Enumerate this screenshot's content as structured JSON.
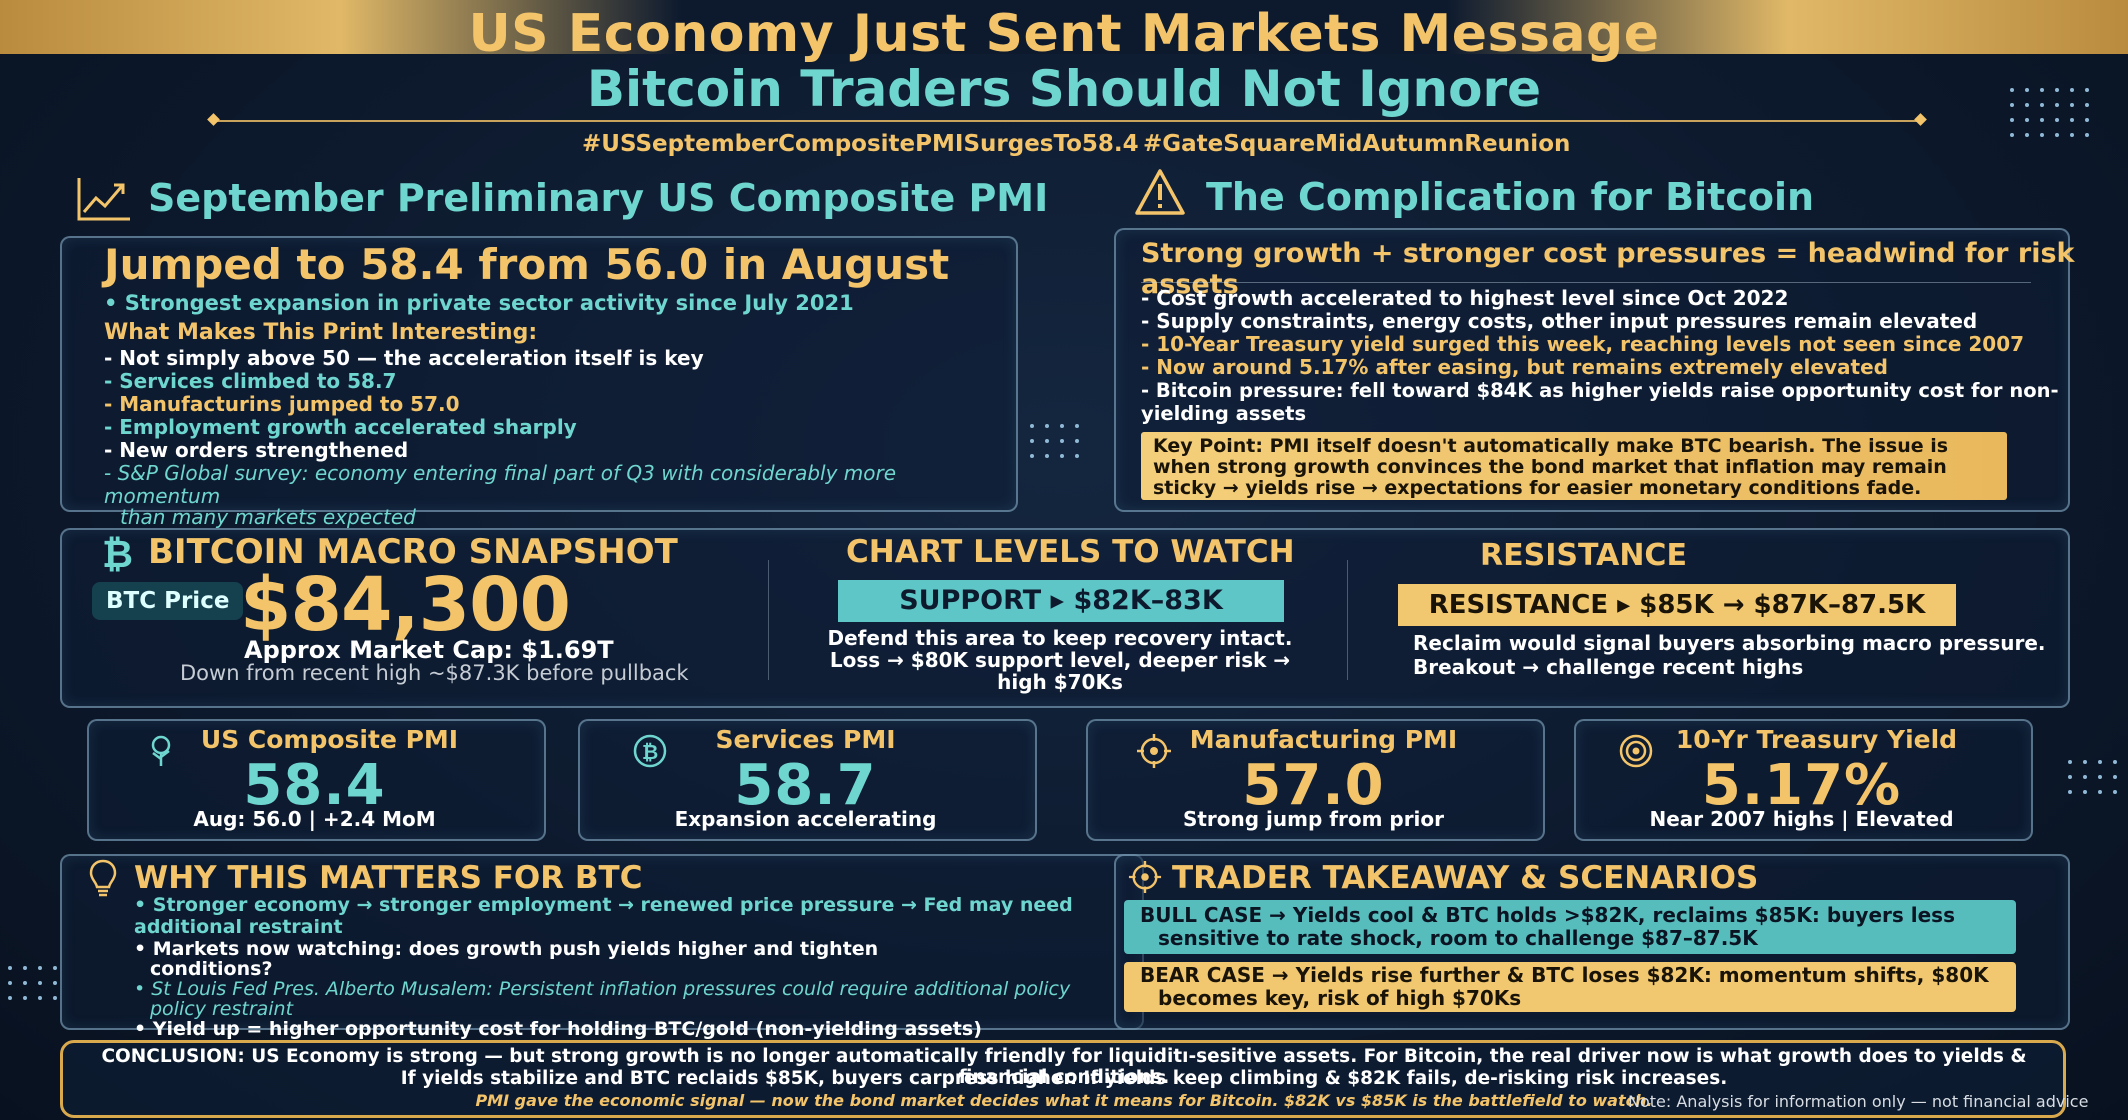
{
  "header": {
    "title_line1": "US Economy Just Sent Markets Message",
    "title_line2": "Bitcoin Traders Should Not Ignore",
    "hashtag1": "#USSeptemberCompositePMISurgesTo58.4",
    "hashtag2": "#GateSquareMidAutumnReunion"
  },
  "pmi_section": {
    "heading": "September Preliminary US Composite PMI",
    "headline": "Jumped to 58.4 from 56.0 in August",
    "subline": "• Strongest expansion in private sector activity since July 2021",
    "interesting_title": "What Makes This Print Interesting:",
    "bullets": [
      "- Not simply above 50 — the acceleration itself is key",
      "- Services climbed to 58.7",
      "- Manufacturins jumped to 57.0",
      "- Employment growth accelerated sharply",
      "- New orders strengthened",
      "- S&P Global survey: economy entering final part of Q3 with considerably more momentum",
      "than many markets expected"
    ]
  },
  "complication": {
    "heading": "The Complication for Bitcoin",
    "headline": "Strong growth + stronger cost pressures = headwind for risk assets",
    "bullets": [
      "- Cost growth accelerated to highest level since Oct 2022",
      "- Supply constraints, energy costs, other input pressures remain elevated",
      "- 10-Year Treasury yield surged this week, reaching levels not seen since 2007",
      "- Now around 5.17% after easing, but remains extremely elevated",
      "- Bitcoin pressure: fell toward $84K as higher yields raise opportunity cost for non-yielding assets"
    ],
    "key_point": "Key Point: PMI itself doesn't automatically make BTC bearish. The issue is when strong growth convinces the bond market that inflation may remain sticky → yields rise → expectations for easier monetary conditions fade."
  },
  "snapshot": {
    "heading": "BITCOIN MACRO SNAPSHOT",
    "price_label": "BTC Price",
    "price": "$84,300",
    "market_cap": "Approx Market Cap: $1.69T",
    "note": "Down from recent high ~$87.3K before pullback",
    "levels_heading": "CHART LEVELS TO WATCH",
    "support_label": "SUPPORT ▸ $82K–83K",
    "support_text1": "Defend this area to keep recovery intact.",
    "support_text2": "Loss → $80K support level, deeper risk →",
    "support_text3": "high $70Ks",
    "resistance_heading": "RESISTANCE",
    "resistance_label": "RESISTANCE ▸ $85K → $87K–87.5K",
    "resistance_text1": "Reclaim would signal buyers absorbing macro pressure.",
    "resistance_text2": "Breakout → challenge recent highs"
  },
  "stats": [
    {
      "name": "US Composite PMI",
      "value": "58.4",
      "sub": "Aug: 56.0 | +2.4 MoM",
      "icon": "growth-tree-icon"
    },
    {
      "name": "Services PMI",
      "value": "58.7",
      "sub": "Expansion accelerating",
      "icon": "bitcoin-coin-icon"
    },
    {
      "name": "Manufacturing PMI",
      "value": "57.0",
      "sub": "Strong jump from prior",
      "icon": "target-crosshair-icon"
    },
    {
      "name": "10-Yr Treasury Yield",
      "value": "5.17%",
      "sub": "Near 2007 highs | Elevated",
      "icon": "target-icon"
    }
  ],
  "why": {
    "heading": "WHY THIS MATTERS FOR BTC",
    "bullets": [
      "• Stronger economy → stronger employment → renewed price pressure → Fed may need additional restraint",
      "• Markets now watching: does growth push yields higher and tighten",
      "conditions?",
      "• St Louis Fed Pres. Alberto Musalem: Persistent inflation pressures could require additional policy",
      "policy restraint",
      "• Yield up = higher opportunity cost for holding BTC/gold (non-yielding assets)"
    ]
  },
  "takeaway": {
    "heading": "TRADER TAKEAWAY & SCENARIOS",
    "bull": "BULL CASE → Yields cool & BTC holds >$82K, reclaims $85K: buyers less sensitive to rate shock, room to challenge $87–87.5K",
    "bear": "BEAR CASE → Yields rise further & BTC loses $82K: momentum shifts, $80K becomes key, risk of high $70Ks"
  },
  "conclusion": {
    "line1": "CONCLUSION: US Economy is strong — but strong growth is no longer automatically friendly for liquiditı-sesitive assets. For Bitcoin, the real driver now is what growth does to yields & financial conditions.",
    "line2": "If yields stabilize and BTC reclaids $85K, buyers carpress higher. If yields keep climbing & $82K fails, de-risking risk increases.",
    "line3": "PMI gave the economic signal — now the bond market decides what it means for Bitcoin. $82K vs $85K is the battlefield to watch.",
    "note": "Note: Analysis for information only — not financial advice"
  },
  "colors": {
    "gold": "#f3c46a",
    "teal": "#6fd6cf",
    "background": "#0d1a2e",
    "support_bg": "#5ec6c6",
    "resistance_bg": "#f1c870"
  }
}
